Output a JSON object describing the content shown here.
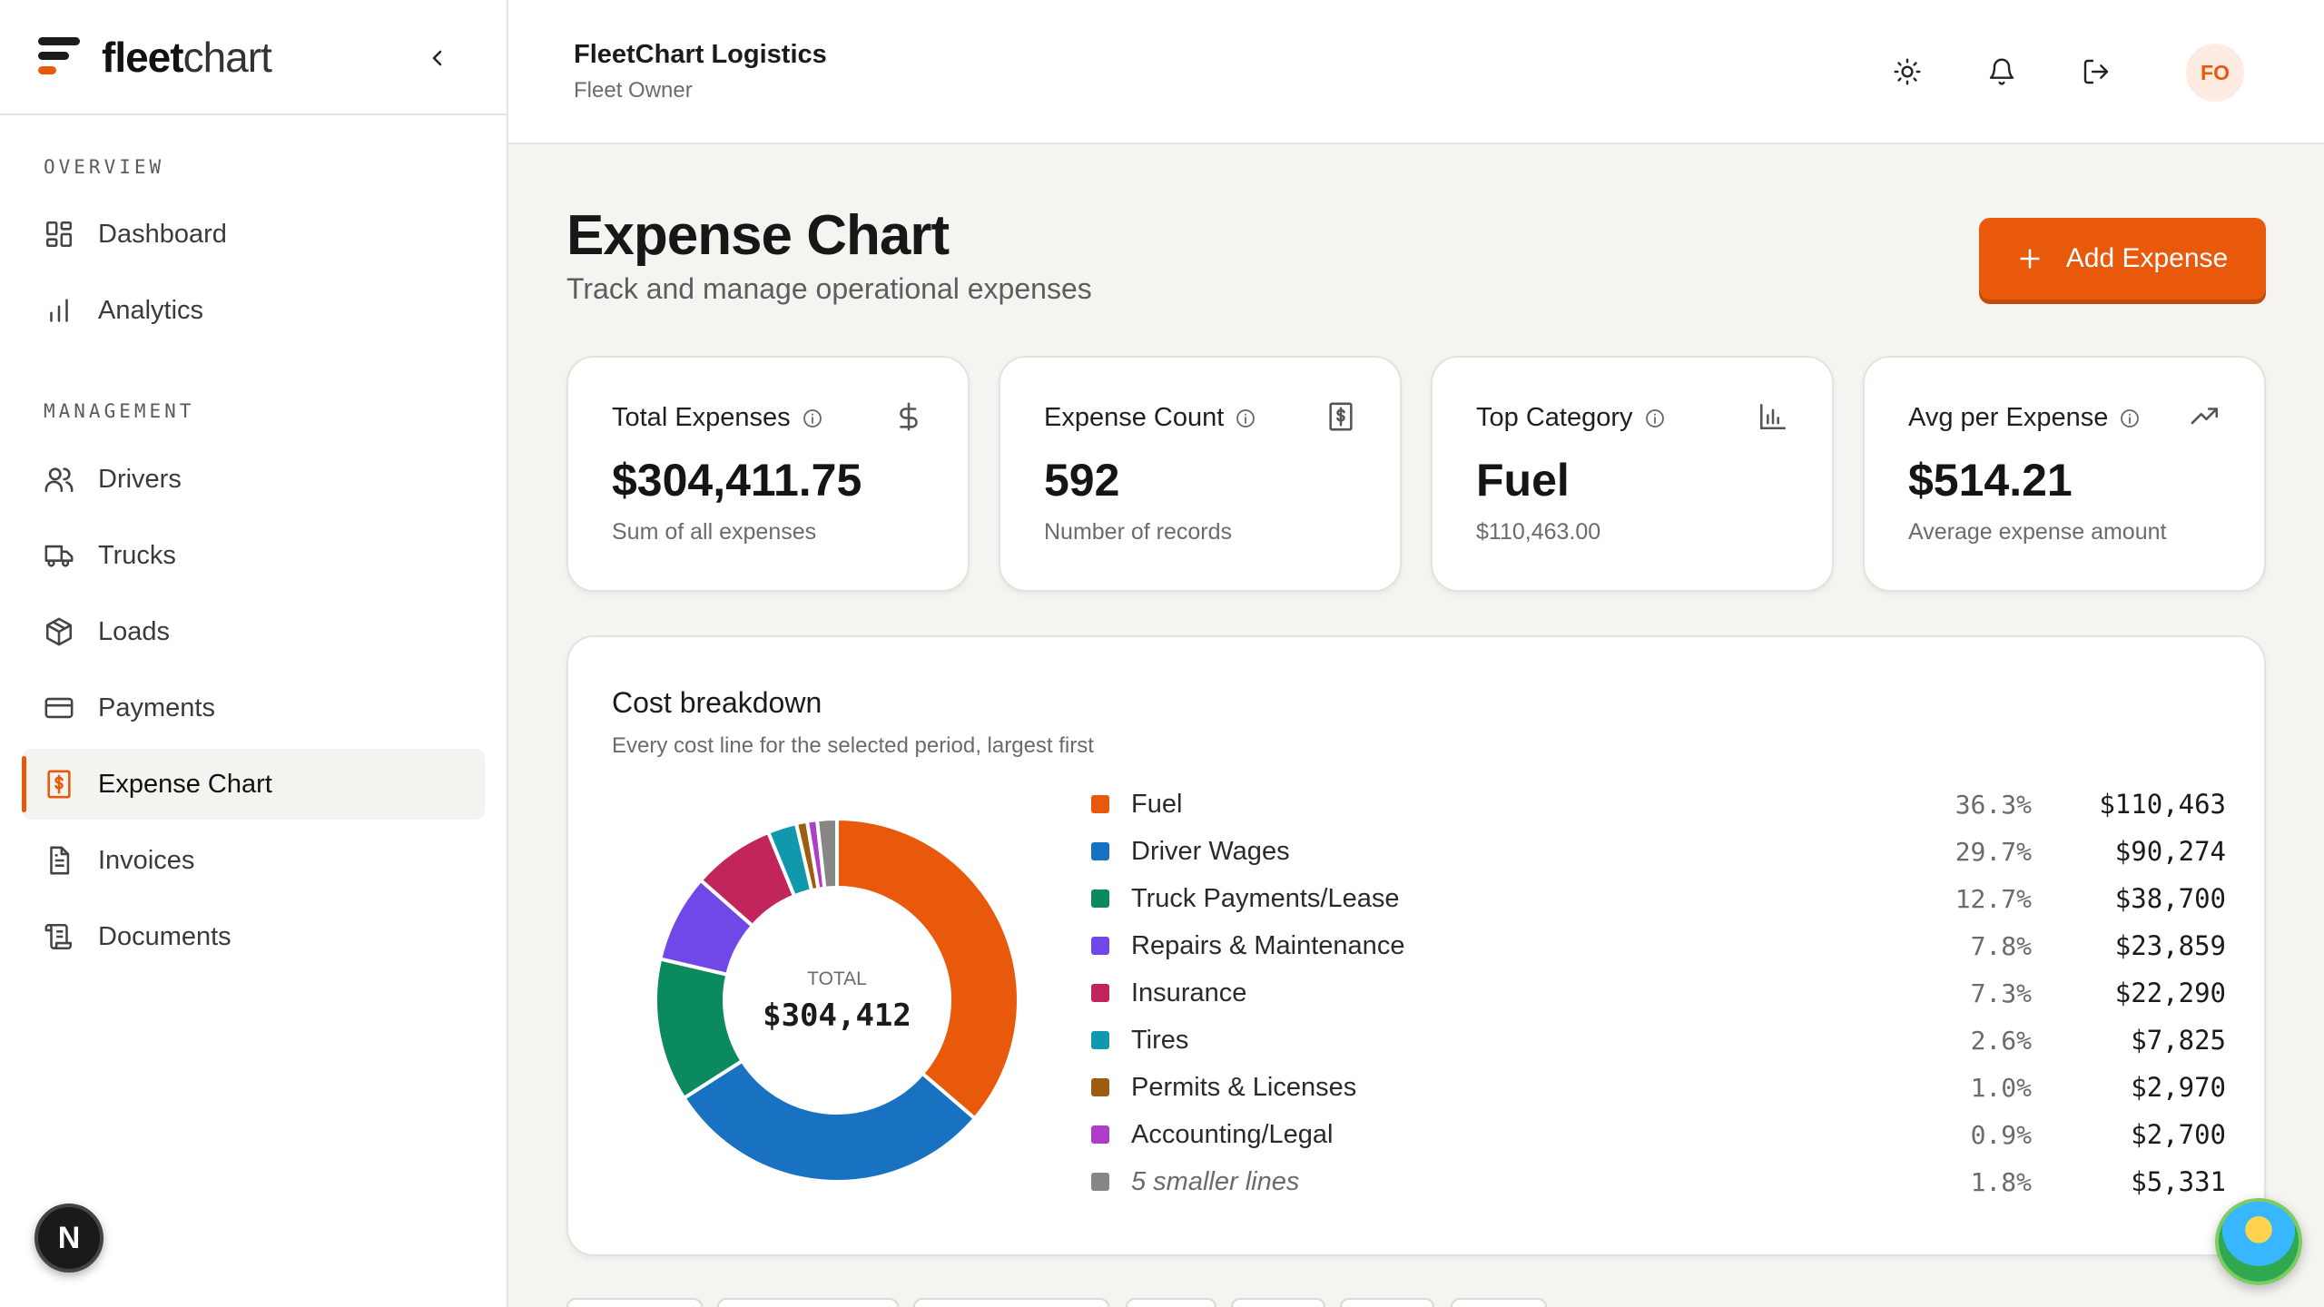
{
  "brand": {
    "name_bold": "fleet",
    "name_light": "chart"
  },
  "sidebar": {
    "sections": [
      {
        "title": "OVERVIEW",
        "items": [
          {
            "label": "Dashboard",
            "icon": "dashboard-icon"
          },
          {
            "label": "Analytics",
            "icon": "bar-chart-icon"
          }
        ]
      },
      {
        "title": "MANAGEMENT",
        "items": [
          {
            "label": "Drivers",
            "icon": "users-icon"
          },
          {
            "label": "Trucks",
            "icon": "truck-icon"
          },
          {
            "label": "Loads",
            "icon": "package-icon"
          },
          {
            "label": "Payments",
            "icon": "credit-card-icon"
          },
          {
            "label": "Expense Chart",
            "icon": "receipt-dollar-icon",
            "active": true
          },
          {
            "label": "Invoices",
            "icon": "file-text-icon"
          },
          {
            "label": "Documents",
            "icon": "scroll-icon"
          }
        ]
      }
    ],
    "badge": "N"
  },
  "header": {
    "org_name": "FleetChart Logistics",
    "org_role": "Fleet Owner",
    "avatar_initials": "FO"
  },
  "page": {
    "title": "Expense Chart",
    "subtitle": "Track and manage operational expenses",
    "add_button": "Add Expense",
    "add_button_icon": "plus-icon"
  },
  "stats": [
    {
      "label": "Total Expenses",
      "value": "$304,411.75",
      "desc": "Sum of all expenses",
      "icon": "dollar-icon"
    },
    {
      "label": "Expense Count",
      "value": "592",
      "desc": "Number of records",
      "icon": "receipt-icon"
    },
    {
      "label": "Top Category",
      "value": "Fuel",
      "desc": "$110,463.00",
      "icon": "bar-chart-icon"
    },
    {
      "label": "Avg per Expense",
      "value": "$514.21",
      "desc": "Average expense amount",
      "icon": "trending-up-icon"
    }
  ],
  "breakdown": {
    "title": "Cost breakdown",
    "subtitle": "Every cost line for the selected period, largest first",
    "total_label": "TOTAL",
    "total_value": "$304,412"
  },
  "chart_data": {
    "type": "pie",
    "title": "Cost breakdown",
    "categories": [
      "Fuel",
      "Driver Wages",
      "Truck Payments/Lease",
      "Repairs & Maintenance",
      "Insurance",
      "Tires",
      "Permits & Licenses",
      "Accounting/Legal",
      "5 smaller lines"
    ],
    "values": [
      110463,
      90274,
      38700,
      23859,
      22290,
      7825,
      2970,
      2700,
      5331
    ],
    "percent_labels": [
      "36.3%",
      "29.7%",
      "12.7%",
      "7.8%",
      "7.3%",
      "2.6%",
      "1.0%",
      "0.9%",
      "1.8%"
    ],
    "amount_labels": [
      "$110,463",
      "$90,274",
      "$38,700",
      "$23,859",
      "$22,290",
      "$7,825",
      "$2,970",
      "$2,700",
      "$5,331"
    ],
    "colors": [
      "#e8590c",
      "#1971c2",
      "#0b8a5e",
      "#7048e8",
      "#c2255c",
      "#1098ad",
      "#9c5d0f",
      "#ae3ec9",
      "#868686"
    ]
  }
}
